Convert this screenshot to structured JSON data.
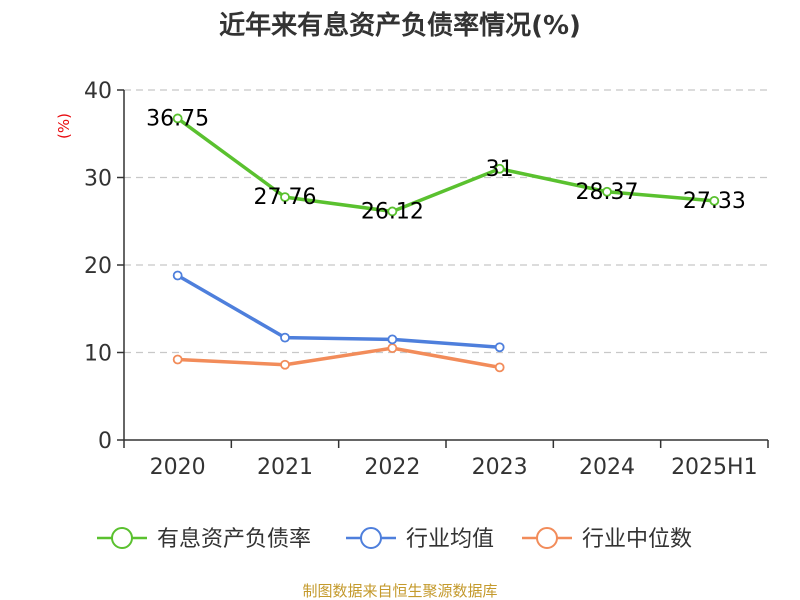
{
  "chart_data": {
    "type": "line",
    "title": "近年来有息资产负债率情况(%)",
    "xlabel": "",
    "ylabel": "(%)",
    "categories": [
      "2020",
      "2021",
      "2022",
      "2023",
      "2024",
      "2025H1"
    ],
    "ylim": [
      0,
      40
    ],
    "yticks": [
      0,
      10,
      20,
      30,
      40
    ],
    "grid": true,
    "legend_position": "bottom",
    "series": [
      {
        "name": "有息资产负债率",
        "color": "#5ac12f",
        "values": [
          36.75,
          27.76,
          26.12,
          31,
          28.37,
          27.33
        ],
        "show_labels": true,
        "labels": [
          "36.75",
          "27.76",
          "26.12",
          "31",
          "28.37",
          "27.33"
        ]
      },
      {
        "name": "行业均值",
        "color": "#4e7fdc",
        "values": [
          18.8,
          11.7,
          11.5,
          10.6,
          null,
          null
        ],
        "show_labels": false
      },
      {
        "name": "行业中位数",
        "color": "#f28c5a",
        "values": [
          9.2,
          8.6,
          10.5,
          8.3,
          null,
          null
        ],
        "show_labels": false
      }
    ],
    "source": "制图数据来自恒生聚源数据库"
  }
}
